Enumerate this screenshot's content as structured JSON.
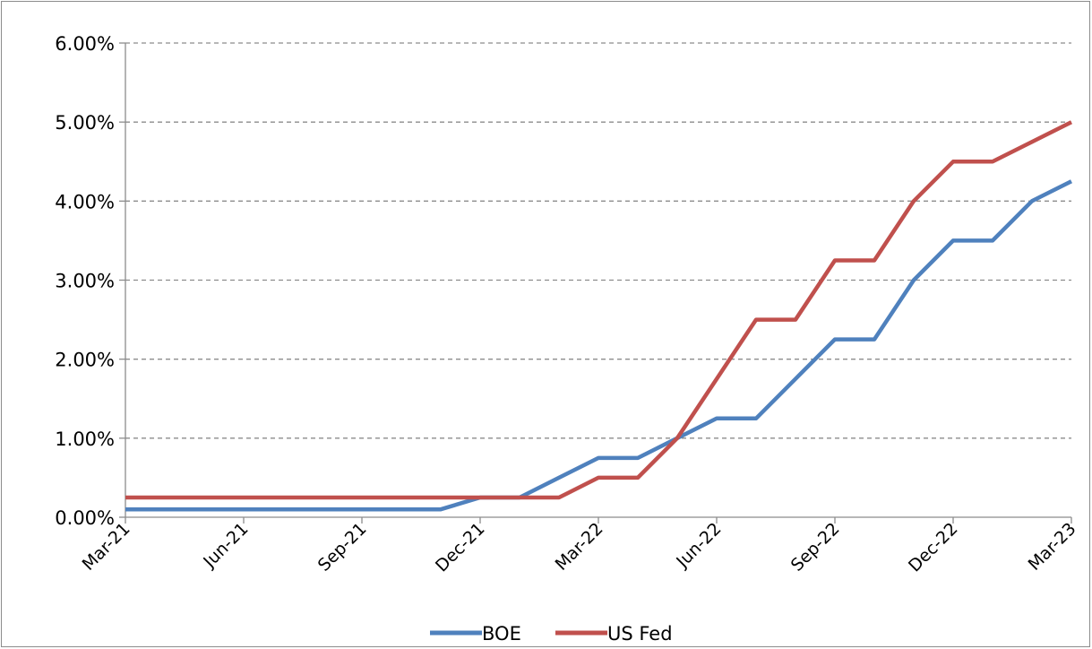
{
  "chart_data": {
    "type": "line",
    "title": "",
    "xlabel": "",
    "ylabel": "",
    "x": [
      "Mar-21",
      "Apr-21",
      "May-21",
      "Jun-21",
      "Jul-21",
      "Aug-21",
      "Sep-21",
      "Oct-21",
      "Nov-21",
      "Dec-21",
      "Jan-22",
      "Feb-22",
      "Mar-22",
      "Apr-22",
      "May-22",
      "Jun-22",
      "Jul-22",
      "Aug-22",
      "Sep-22",
      "Oct-22",
      "Nov-22",
      "Dec-22",
      "Jan-23",
      "Feb-23",
      "Mar-23"
    ],
    "x_ticks": [
      "Mar-21",
      "Jun-21",
      "Sep-21",
      "Dec-21",
      "Mar-22",
      "Jun-22",
      "Sep-22",
      "Dec-22",
      "Mar-23"
    ],
    "y_ticks": [
      "0.00%",
      "1.00%",
      "2.00%",
      "3.00%",
      "4.00%",
      "5.00%",
      "6.00%"
    ],
    "ylim": [
      0,
      6
    ],
    "grid": "horizontal dashed",
    "legend_position": "bottom",
    "series": [
      {
        "name": "BOE",
        "color": "#4f81bd",
        "values": [
          0.1,
          0.1,
          0.1,
          0.1,
          0.1,
          0.1,
          0.1,
          0.1,
          0.1,
          0.25,
          0.25,
          0.5,
          0.75,
          0.75,
          1.0,
          1.25,
          1.25,
          1.75,
          2.25,
          2.25,
          3.0,
          3.5,
          3.5,
          4.0,
          4.25
        ]
      },
      {
        "name": "US Fed",
        "color": "#c0504d",
        "values": [
          0.25,
          0.25,
          0.25,
          0.25,
          0.25,
          0.25,
          0.25,
          0.25,
          0.25,
          0.25,
          0.25,
          0.25,
          0.5,
          0.5,
          1.0,
          1.75,
          2.5,
          2.5,
          3.25,
          3.25,
          4.0,
          4.5,
          4.5,
          4.75,
          5.0
        ]
      }
    ]
  }
}
